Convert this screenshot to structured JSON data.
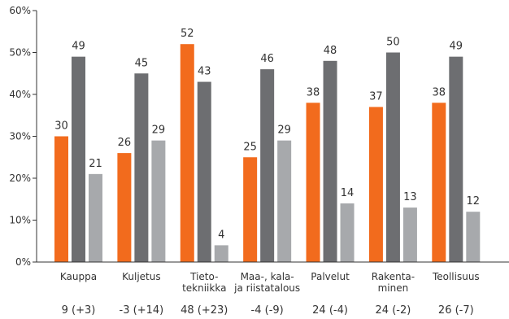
{
  "chart_data": {
    "type": "bar",
    "categories": [
      [
        "Kauppa"
      ],
      [
        "Kuljetus"
      ],
      [
        "Tieto-",
        "tekniikka"
      ],
      [
        "Maa-, kala-",
        "ja riistatalous"
      ],
      [
        "Palvelut"
      ],
      [
        "Rakenta-",
        "minen"
      ],
      [
        "Teollisuus"
      ]
    ],
    "footer_labels": [
      "9 (+3)",
      "-3 (+14)",
      "48 (+23)",
      "-4 (-9)",
      "24 (-4)",
      "24 (-2)",
      "26 (-7)"
    ],
    "series": [
      {
        "color": "#f26b1d",
        "values": [
          30,
          26,
          52,
          25,
          38,
          37,
          38
        ]
      },
      {
        "color": "#6d6e71",
        "values": [
          49,
          45,
          43,
          46,
          48,
          50,
          49
        ]
      },
      {
        "color": "#a7a9ac",
        "values": [
          21,
          29,
          4,
          29,
          14,
          13,
          12
        ]
      }
    ],
    "ylim": [
      0,
      60
    ],
    "yticks": [
      0,
      10,
      20,
      30,
      40,
      50,
      60
    ],
    "ytick_labels": [
      "0%",
      "10%",
      "20%",
      "30%",
      "40%",
      "50%",
      "60%"
    ],
    "grid": false,
    "axis_color": "#333333"
  }
}
